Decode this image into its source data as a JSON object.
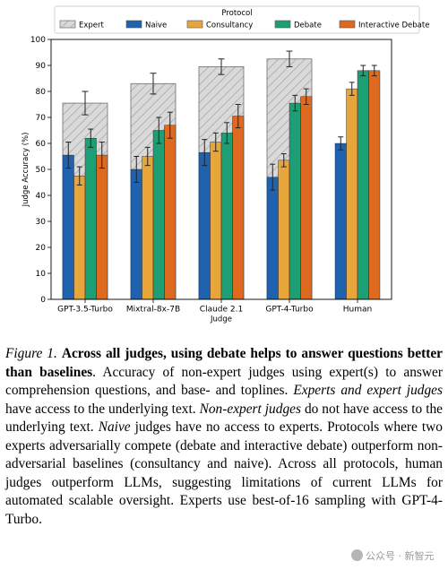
{
  "chart_data": {
    "type": "bar",
    "legend_title": "Protocol",
    "legend_position": "top",
    "categories": [
      "GPT-3.5-Turbo",
      "Mixtral-8x-7B",
      "Claude 2.1",
      "GPT-4-Turbo",
      "Human"
    ],
    "xlabel": "Judge",
    "ylabel": "Judge Accuracy (%)",
    "ylim": [
      0,
      100
    ],
    "yticks": [
      0,
      10,
      20,
      30,
      40,
      50,
      60,
      70,
      80,
      90,
      100
    ],
    "expert": {
      "name": "Expert",
      "values": [
        75.5,
        83,
        89.5,
        92.5,
        null
      ],
      "err": [
        4.5,
        4,
        3,
        3,
        null
      ],
      "color": "#d9d9d9"
    },
    "series": [
      {
        "name": "Naive",
        "color": "#1f63b0",
        "values": [
          55.5,
          50,
          56.5,
          47,
          60
        ],
        "err": [
          5,
          5,
          5,
          5,
          2.5
        ]
      },
      {
        "name": "Consultancy",
        "color": "#e8a53a",
        "values": [
          47.5,
          55,
          60.5,
          53.5,
          81
        ],
        "err": [
          3.5,
          3.5,
          3.5,
          2.5,
          2.5
        ]
      },
      {
        "name": "Debate",
        "color": "#1e9e74",
        "values": [
          62,
          65,
          64,
          75.5,
          88
        ],
        "err": [
          3.5,
          5,
          4,
          3,
          2
        ]
      },
      {
        "name": "Interactive Debate",
        "color": "#dd6a1f",
        "values": [
          55.5,
          67,
          70.5,
          78,
          88
        ],
        "err": [
          5,
          5,
          4.5,
          3,
          2
        ]
      }
    ]
  },
  "caption": {
    "figure_label": "Figure 1.",
    "title": "Across all judges, using debate helps to answer questions better than baselines",
    "s1": ". Accuracy of non-expert judges using expert(s) to answer comprehension questions, and base- and toplines. ",
    "experts_term": "Experts and expert judges",
    "s2": " have access to the underlying text. ",
    "nonexpert_term": "Non-expert judges",
    "s3": " do not have access to the underlying text. ",
    "naive_term": "Naive",
    "s4": " judges have no access to experts. Protocols where two experts adversarially compete (debate and interactive debate) outperform non-adversarial baselines (consultancy and naive). Across all protocols, human judges outperform LLMs, suggesting limitations of current LLMs for automated scalable oversight. Experts use best-of-16 sampling with GPT-4-Turbo."
  },
  "watermark": "公众号 · 新智元"
}
